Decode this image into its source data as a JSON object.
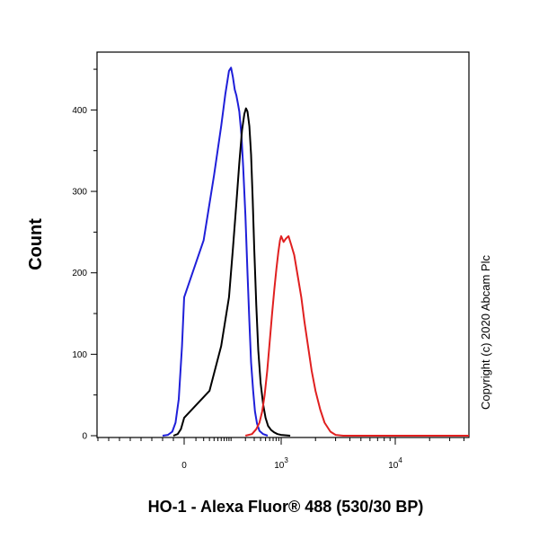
{
  "chart_data": {
    "type": "line",
    "title": "",
    "xlabel": "HO-1 - Alexa Fluor® 488 (530/30 BP)",
    "ylabel": "Count",
    "x_scale": "biexponential",
    "x_axis_labels": [
      {
        "base": "0",
        "exp": "",
        "value": 0
      },
      {
        "base": "10",
        "exp": "3",
        "value": 1000
      },
      {
        "base": "10",
        "exp": "4",
        "value": 10000
      }
    ],
    "ylim": [
      0,
      450
    ],
    "y_ticks": [
      0,
      100,
      200,
      300,
      400
    ],
    "grid": false,
    "legend": "none",
    "copyright": "Copyright (c) 2020 Abcam Plc",
    "series": [
      {
        "color": "#1f1fd9",
        "points": [
          [
            -200,
            0
          ],
          [
            -150,
            1
          ],
          [
            -110,
            5
          ],
          [
            -80,
            16
          ],
          [
            -50,
            45
          ],
          [
            -20,
            110
          ],
          [
            0,
            170
          ],
          [
            20,
            240
          ],
          [
            40,
            320
          ],
          [
            60,
            380
          ],
          [
            75,
            420
          ],
          [
            90,
            448
          ],
          [
            100,
            452
          ],
          [
            110,
            440
          ],
          [
            120,
            425
          ],
          [
            130,
            418
          ],
          [
            140,
            408
          ],
          [
            150,
            398
          ],
          [
            165,
            370
          ],
          [
            180,
            330
          ],
          [
            200,
            270
          ],
          [
            220,
            200
          ],
          [
            240,
            140
          ],
          [
            260,
            90
          ],
          [
            285,
            55
          ],
          [
            310,
            30
          ],
          [
            340,
            15
          ],
          [
            380,
            6
          ],
          [
            450,
            2
          ],
          [
            550,
            0
          ]
        ]
      },
      {
        "color": "#000000",
        "points": [
          [
            -100,
            0
          ],
          [
            -60,
            2
          ],
          [
            -30,
            8
          ],
          [
            0,
            22
          ],
          [
            30,
            55
          ],
          [
            60,
            110
          ],
          [
            90,
            170
          ],
          [
            110,
            230
          ],
          [
            130,
            285
          ],
          [
            150,
            335
          ],
          [
            170,
            375
          ],
          [
            190,
            395
          ],
          [
            205,
            402
          ],
          [
            220,
            398
          ],
          [
            240,
            380
          ],
          [
            260,
            345
          ],
          [
            280,
            290
          ],
          [
            300,
            230
          ],
          [
            330,
            160
          ],
          [
            360,
            105
          ],
          [
            400,
            65
          ],
          [
            450,
            38
          ],
          [
            500,
            22
          ],
          [
            560,
            12
          ],
          [
            640,
            7
          ],
          [
            740,
            4
          ],
          [
            850,
            2
          ],
          [
            1000,
            1
          ],
          [
            1200,
            0
          ]
        ]
      },
      {
        "color": "#e02020",
        "points": [
          [
            200,
            0
          ],
          [
            270,
            2
          ],
          [
            330,
            8
          ],
          [
            380,
            16
          ],
          [
            430,
            30
          ],
          [
            480,
            50
          ],
          [
            540,
            80
          ],
          [
            600,
            115
          ],
          [
            670,
            150
          ],
          [
            740,
            180
          ],
          [
            810,
            205
          ],
          [
            880,
            225
          ],
          [
            950,
            240
          ],
          [
            1000,
            245
          ],
          [
            1050,
            238
          ],
          [
            1100,
            242
          ],
          [
            1160,
            245
          ],
          [
            1220,
            235
          ],
          [
            1300,
            222
          ],
          [
            1400,
            195
          ],
          [
            1500,
            170
          ],
          [
            1600,
            140
          ],
          [
            1720,
            110
          ],
          [
            1850,
            80
          ],
          [
            2000,
            55
          ],
          [
            2200,
            32
          ],
          [
            2400,
            16
          ],
          [
            2700,
            5
          ],
          [
            3000,
            1
          ],
          [
            3500,
            0
          ],
          [
            50000,
            0
          ]
        ]
      }
    ]
  }
}
